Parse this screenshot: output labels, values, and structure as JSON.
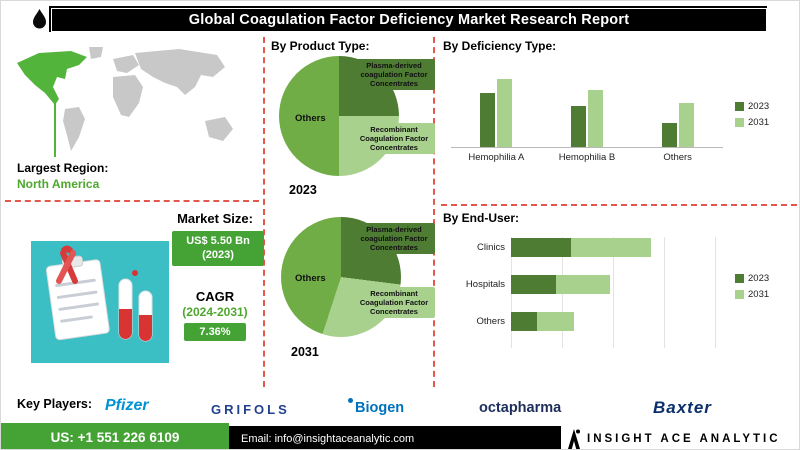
{
  "title": "Global Coagulation Factor Deficiency Market Research Report",
  "colors": {
    "dashed_red": "#e4584c",
    "dark_green": "#4e7c33",
    "mid_green": "#71ad47",
    "light_green": "#a9d18e",
    "badge_green": "#45a335",
    "teal": "#3bbfc4"
  },
  "region": {
    "label": "Largest Region:",
    "value": "North America"
  },
  "market": {
    "size_label": "Market Size:",
    "size_value": "US$ 5.50 Bn",
    "size_year": "(2023)",
    "cagr_label": "CAGR",
    "cagr_period": "(2024-2031)",
    "cagr_value": "7.36%"
  },
  "sections": {
    "product_type": "By Product Type:"
  },
  "chart_data": [
    {
      "id": "product-type-2023",
      "type": "pie",
      "title": "2023",
      "labels": [
        "Plasma-derived coagulation Factor Concentrates",
        "Recombinant Coagulation Factor Concentrates",
        "Others"
      ],
      "values": [
        25,
        25,
        50
      ],
      "colors": [
        "#4e7c33",
        "#a9d18e",
        "#71ad47"
      ]
    },
    {
      "id": "product-type-2031",
      "type": "pie",
      "title": "2031",
      "labels": [
        "Plasma-derived coagulation Factor Concentrates",
        "Recombinant Coagulation Factor Concentrates",
        "Others"
      ],
      "values": [
        27,
        28,
        45
      ],
      "colors": [
        "#4e7c33",
        "#a9d18e",
        "#71ad47"
      ]
    },
    {
      "id": "deficiency-type",
      "type": "bar",
      "title": "By Deficiency Type:",
      "categories": [
        "Hemophilia A",
        "Hemophilia B",
        "Others"
      ],
      "series": [
        {
          "name": "2023",
          "color": "#4e7c33",
          "values": [
            55,
            42,
            25
          ]
        },
        {
          "name": "2031",
          "color": "#a9d18e",
          "values": [
            70,
            58,
            45
          ]
        }
      ],
      "ylim": [
        0,
        80
      ],
      "legend_position": "right",
      "grid": false
    },
    {
      "id": "end-user",
      "type": "bar",
      "orientation": "horizontal",
      "stacked": true,
      "title": "By End-User:",
      "categories": [
        "Clinics",
        "Hospitals",
        "Others"
      ],
      "series": [
        {
          "name": "2023",
          "color": "#4e7c33",
          "values": [
            28,
            21,
            12
          ]
        },
        {
          "name": "2031",
          "color": "#a9d18e",
          "values": [
            37,
            25,
            17
          ]
        }
      ],
      "xlim": [
        0,
        100
      ],
      "legend_position": "right",
      "grid": true
    }
  ],
  "key_players": {
    "label": "Key Players:",
    "names": [
      "Pfizer",
      "GRIFOLS",
      "Biogen",
      "octapharma",
      "Baxter"
    ]
  },
  "footer": {
    "phone": "US: +1 551 226 6109",
    "email": "Email: info@insightaceanalytic.com",
    "brand": "INSIGHT ACE ANALYTIC"
  }
}
